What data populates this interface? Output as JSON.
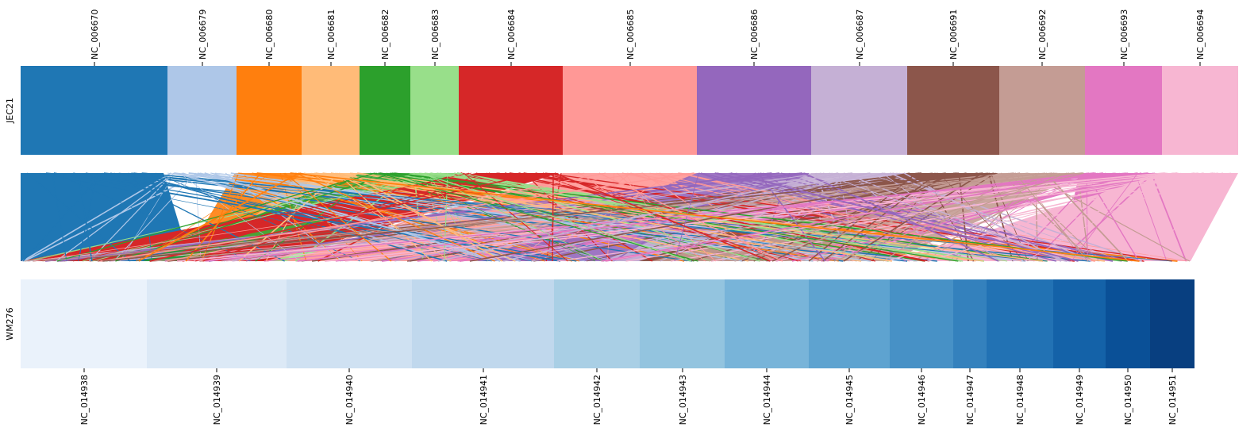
{
  "top_genome": {
    "name": "JEC21",
    "contigs": [
      {
        "id": "NC_006670",
        "color": "#1f77b4"
      },
      {
        "id": "NC_006679",
        "color": "#aec7e8"
      },
      {
        "id": "NC_006680",
        "color": "#ff7f0e"
      },
      {
        "id": "NC_006681",
        "color": "#ffbb78"
      },
      {
        "id": "NC_006682",
        "color": "#2ca02c"
      },
      {
        "id": "NC_006683",
        "color": "#98df8a"
      },
      {
        "id": "NC_006684",
        "color": "#d62728"
      },
      {
        "id": "NC_006685",
        "color": "#ff9896"
      },
      {
        "id": "NC_006686",
        "color": "#9467bd"
      },
      {
        "id": "NC_006687",
        "color": "#c5b0d5"
      },
      {
        "id": "NC_006691",
        "color": "#8c564b"
      },
      {
        "id": "NC_006692",
        "color": "#c49c94"
      },
      {
        "id": "NC_006693",
        "color": "#e377c2"
      },
      {
        "id": "NC_006694",
        "color": "#f7b6d2"
      }
    ]
  },
  "bottom_genome": {
    "name": "WM276",
    "contigs": [
      {
        "id": "NC_014938",
        "color": "#eaf2fb"
      },
      {
        "id": "NC_014939",
        "color": "#dce9f6"
      },
      {
        "id": "NC_014940",
        "color": "#cfe1f2"
      },
      {
        "id": "NC_014941",
        "color": "#c0d8ed"
      },
      {
        "id": "NC_014942",
        "color": "#a9cfe5"
      },
      {
        "id": "NC_014943",
        "color": "#93c4df"
      },
      {
        "id": "NC_014944",
        "color": "#78b4d9"
      },
      {
        "id": "NC_014945",
        "color": "#5ea3d0"
      },
      {
        "id": "NC_014946",
        "color": "#4791c6"
      },
      {
        "id": "NC_014947",
        "color": "#3481bd"
      },
      {
        "id": "NC_014948",
        "color": "#2272b4"
      },
      {
        "id": "NC_014949",
        "color": "#1462a8"
      },
      {
        "id": "NC_014950",
        "color": "#0a5097"
      },
      {
        "id": "NC_014951",
        "color": "#083f80"
      }
    ]
  }
}
